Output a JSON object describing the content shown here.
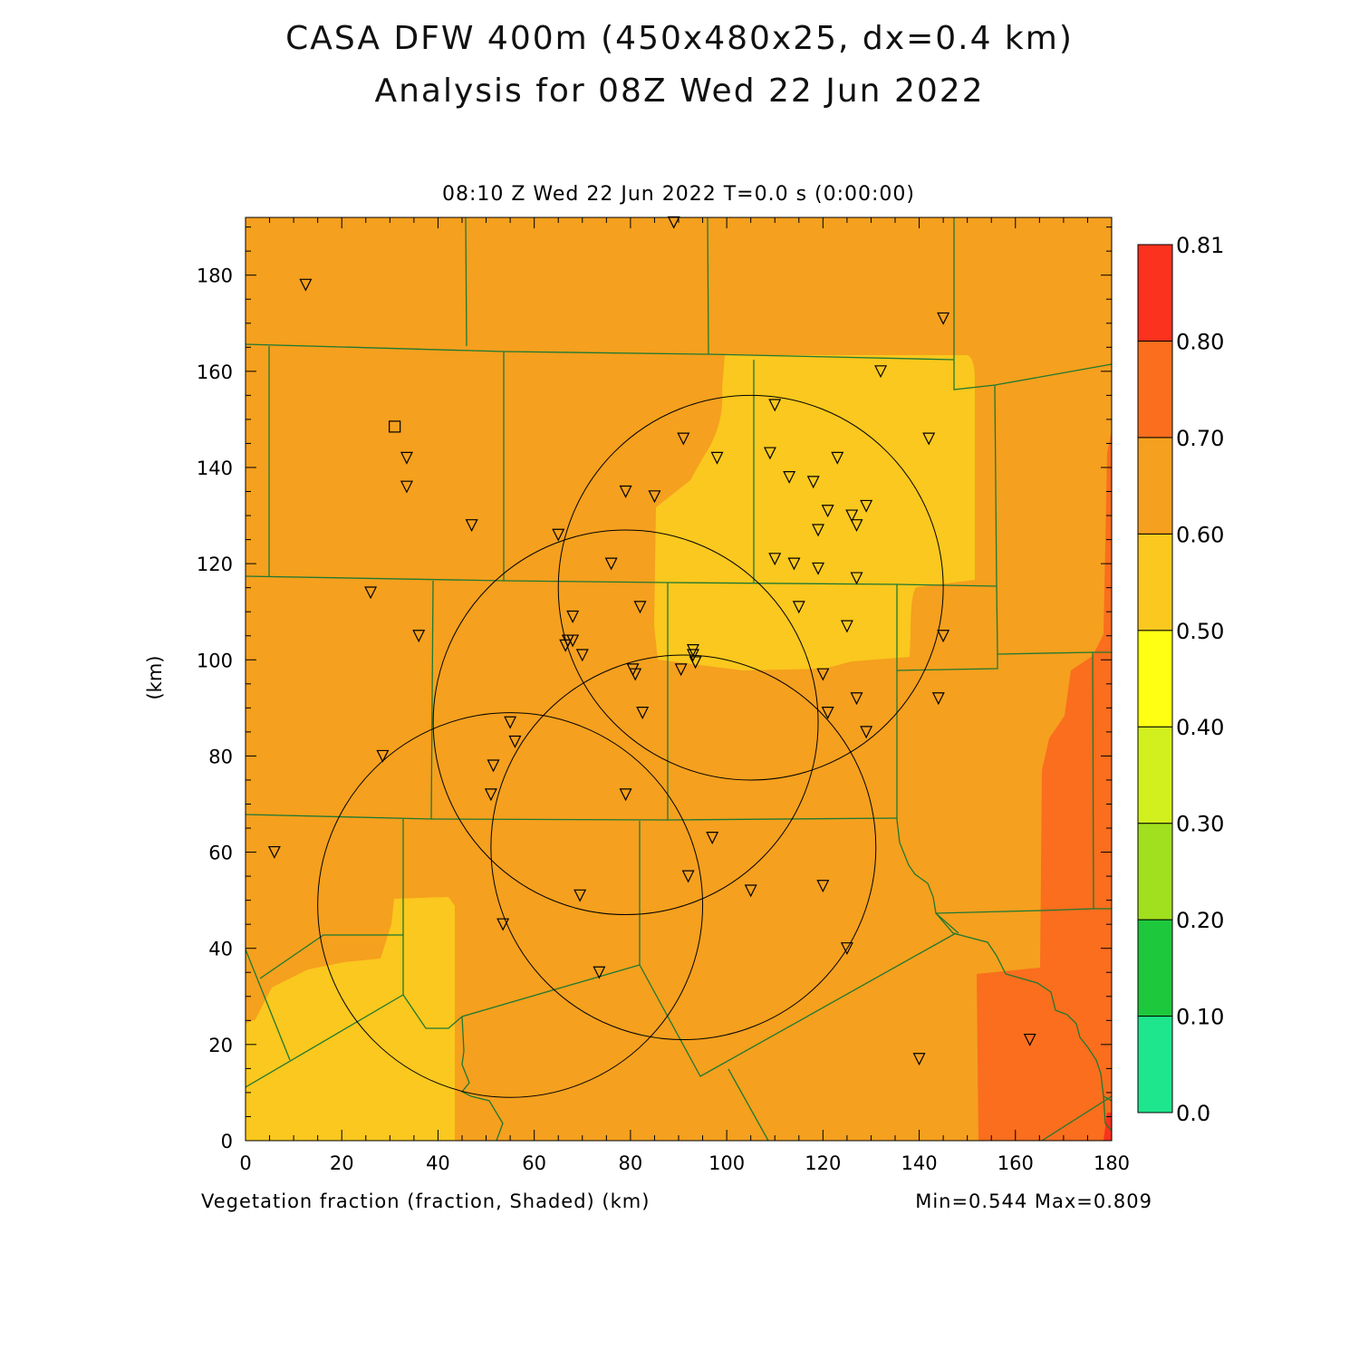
{
  "header": {
    "title_line1": "CASA DFW 400m (450x480x25, dx=0.4 km)",
    "title_line2": "Analysis for 08Z Wed 22 Jun 2022"
  },
  "plot": {
    "subtitle": "08:10 Z Wed 22 Jun 2022   T=0.0 s (0:00:00)",
    "variable_label": "Vegetation fraction (fraction, Shaded)  (km)",
    "minmax_label": "Min=0.544 Max=0.809",
    "y_axis_label": "(km)"
  },
  "axes": {
    "x_ticks": [
      "0",
      "20",
      "40",
      "60",
      "80",
      "100",
      "120",
      "140",
      "160",
      "180"
    ],
    "y_ticks": [
      "0",
      "20",
      "40",
      "60",
      "80",
      "100",
      "120",
      "140",
      "160",
      "180"
    ],
    "x_range": [
      0,
      180
    ],
    "y_range": [
      0,
      192
    ]
  },
  "colorbar": {
    "levels": [
      "0.0",
      "0.10",
      "0.20",
      "0.30",
      "0.40",
      "0.50",
      "0.60",
      "0.70",
      "0.80",
      "0.81"
    ],
    "colors": [
      "#1ee68c",
      "#1ec83c",
      "#a0e01e",
      "#d2f01e",
      "#ffff14",
      "#fac81e",
      "#f5a01e",
      "#fa6e1e",
      "#fa321e"
    ]
  },
  "colors": {
    "field_orange": "#f5a01e",
    "field_yellow": "#fac81e",
    "field_dark_orange": "#fa6e1e",
    "field_red": "#fa321e",
    "boundary": "#1e7832"
  },
  "radar_rings": [
    {
      "cx": 55,
      "cy": 49,
      "r": 40
    },
    {
      "cx": 79,
      "cy": 87,
      "r": 40
    },
    {
      "cx": 91,
      "cy": 61,
      "r": 40
    },
    {
      "cx": 105,
      "cy": 115,
      "r": 40
    }
  ],
  "stations": [
    [
      12.5,
      178
    ],
    [
      89,
      191
    ],
    [
      145,
      171
    ],
    [
      132,
      160
    ],
    [
      110,
      153
    ],
    [
      91,
      146
    ],
    [
      98,
      142
    ],
    [
      109,
      143
    ],
    [
      113,
      138
    ],
    [
      118,
      137
    ],
    [
      123,
      142
    ],
    [
      142,
      146
    ],
    [
      79,
      135
    ],
    [
      85,
      134
    ],
    [
      121,
      131
    ],
    [
      126,
      130
    ],
    [
      129,
      132
    ],
    [
      119,
      127
    ],
    [
      127,
      128
    ],
    [
      110,
      121
    ],
    [
      114,
      120
    ],
    [
      119,
      119
    ],
    [
      127,
      117
    ],
    [
      76,
      120
    ],
    [
      65,
      126
    ],
    [
      47,
      128
    ],
    [
      33.5,
      142
    ],
    [
      33.5,
      136
    ],
    [
      26,
      114
    ],
    [
      36,
      105
    ],
    [
      82,
      111
    ],
    [
      68,
      109
    ],
    [
      115,
      111
    ],
    [
      125,
      107
    ],
    [
      145,
      105
    ],
    [
      66.5,
      103
    ],
    [
      67,
      104
    ],
    [
      68,
      104
    ],
    [
      70,
      101
    ],
    [
      93,
      102
    ],
    [
      93,
      101
    ],
    [
      93.5,
      99.5
    ],
    [
      80.5,
      98
    ],
    [
      81,
      97
    ],
    [
      90.5,
      98
    ],
    [
      120,
      97
    ],
    [
      127,
      92
    ],
    [
      144,
      92
    ],
    [
      82.5,
      89
    ],
    [
      121,
      89
    ],
    [
      129,
      85
    ],
    [
      55,
      87
    ],
    [
      56,
      83
    ],
    [
      28.5,
      80
    ],
    [
      51.5,
      78
    ],
    [
      51,
      72
    ],
    [
      79,
      72
    ],
    [
      97,
      63
    ],
    [
      6,
      60
    ],
    [
      92,
      55
    ],
    [
      120,
      53
    ],
    [
      105,
      52
    ],
    [
      69.5,
      51
    ],
    [
      53.5,
      45
    ],
    [
      125,
      40
    ],
    [
      73.5,
      35
    ],
    [
      163,
      21
    ],
    [
      140,
      17
    ]
  ],
  "square_marker": [
    31,
    148.5
  ]
}
